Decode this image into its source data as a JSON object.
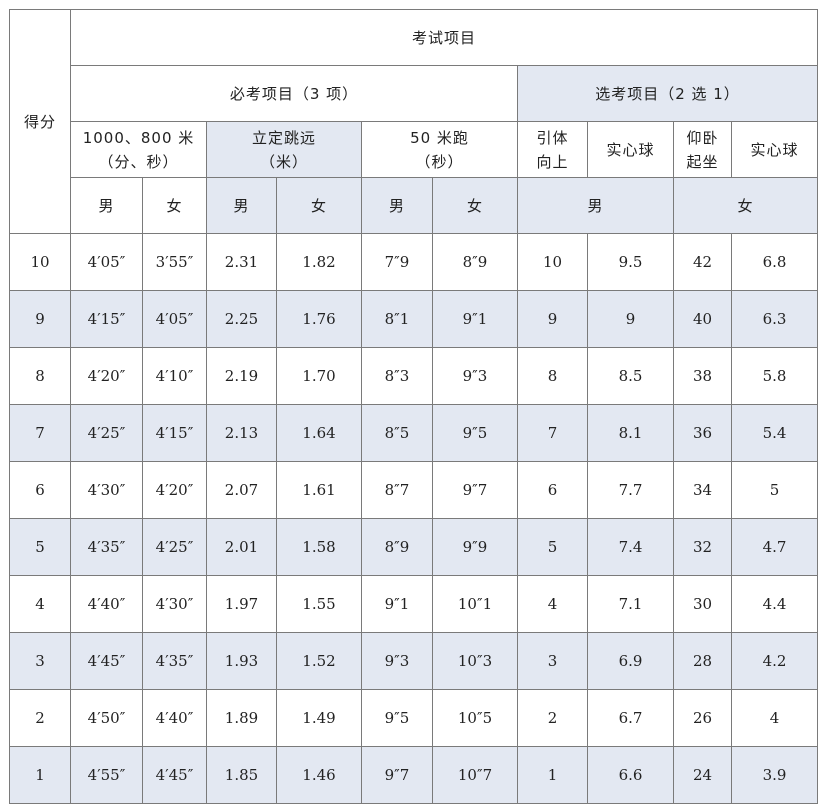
{
  "header": {
    "score": "得分",
    "exam_items": "考试项目",
    "required": "必考项目（3 项）",
    "optional": "选考项目（2 选 1）",
    "run_a": "1000、800 米",
    "run_b": "（分、秒）",
    "jump_a": "立定跳远",
    "jump_b": "（米）",
    "dash_a": "50 米跑",
    "dash_b": "（秒）",
    "pullup_a": "引体",
    "pullup_b": "向上",
    "ball_m": "实心球",
    "situp_a": "仰卧",
    "situp_b": "起坐",
    "ball_f": "实心球",
    "male": "男",
    "female": "女"
  },
  "rows": [
    {
      "score": "10",
      "run_m": "4′05″",
      "run_f": "3′55″",
      "jump_m": "2.31",
      "jump_f": "1.82",
      "dash_m": "7″9",
      "dash_f": "8″9",
      "pullup": "10",
      "ball_m": "9.5",
      "situp": "42",
      "ball_f": "6.8"
    },
    {
      "score": "9",
      "run_m": "4′15″",
      "run_f": "4′05″",
      "jump_m": "2.25",
      "jump_f": "1.76",
      "dash_m": "8″1",
      "dash_f": "9″1",
      "pullup": "9",
      "ball_m": "9",
      "situp": "40",
      "ball_f": "6.3"
    },
    {
      "score": "8",
      "run_m": "4′20″",
      "run_f": "4′10″",
      "jump_m": "2.19",
      "jump_f": "1.70",
      "dash_m": "8″3",
      "dash_f": "9″3",
      "pullup": "8",
      "ball_m": "8.5",
      "situp": "38",
      "ball_f": "5.8"
    },
    {
      "score": "7",
      "run_m": "4′25″",
      "run_f": "4′15″",
      "jump_m": "2.13",
      "jump_f": "1.64",
      "dash_m": "8″5",
      "dash_f": "9″5",
      "pullup": "7",
      "ball_m": "8.1",
      "situp": "36",
      "ball_f": "5.4"
    },
    {
      "score": "6",
      "run_m": "4′30″",
      "run_f": "4′20″",
      "jump_m": "2.07",
      "jump_f": "1.61",
      "dash_m": "8″7",
      "dash_f": "9″7",
      "pullup": "6",
      "ball_m": "7.7",
      "situp": "34",
      "ball_f": "5"
    },
    {
      "score": "5",
      "run_m": "4′35″",
      "run_f": "4′25″",
      "jump_m": "2.01",
      "jump_f": "1.58",
      "dash_m": "8″9",
      "dash_f": "9″9",
      "pullup": "5",
      "ball_m": "7.4",
      "situp": "32",
      "ball_f": "4.7"
    },
    {
      "score": "4",
      "run_m": "4′40″",
      "run_f": "4′30″",
      "jump_m": "1.97",
      "jump_f": "1.55",
      "dash_m": "9″1",
      "dash_f": "10″1",
      "pullup": "4",
      "ball_m": "7.1",
      "situp": "30",
      "ball_f": "4.4"
    },
    {
      "score": "3",
      "run_m": "4′45″",
      "run_f": "4′35″",
      "jump_m": "1.93",
      "jump_f": "1.52",
      "dash_m": "9″3",
      "dash_f": "10″3",
      "pullup": "3",
      "ball_m": "6.9",
      "situp": "28",
      "ball_f": "4.2"
    },
    {
      "score": "2",
      "run_m": "4′50″",
      "run_f": "4′40″",
      "jump_m": "1.89",
      "jump_f": "1.49",
      "dash_m": "9″5",
      "dash_f": "10″5",
      "pullup": "2",
      "ball_m": "6.7",
      "situp": "26",
      "ball_f": "4"
    },
    {
      "score": "1",
      "run_m": "4′55″",
      "run_f": "4′45″",
      "jump_m": "1.85",
      "jump_f": "1.46",
      "dash_m": "9″7",
      "dash_f": "10″7",
      "pullup": "1",
      "ball_m": "6.6",
      "situp": "24",
      "ball_f": "3.9"
    }
  ],
  "colors": {
    "shade": "#e3e8f2",
    "border": "#7a7a7a"
  }
}
